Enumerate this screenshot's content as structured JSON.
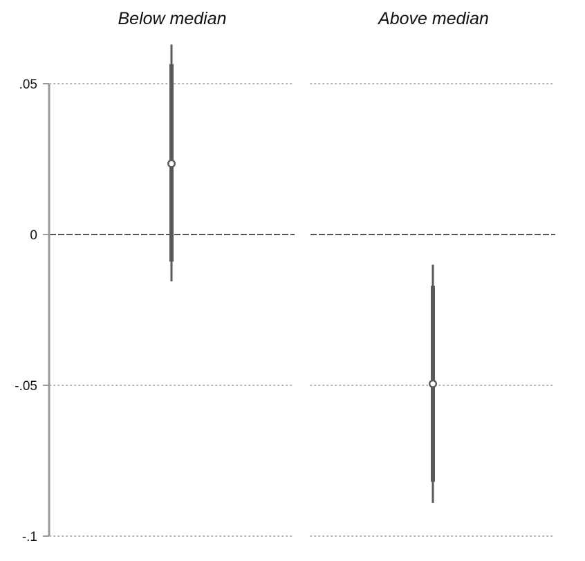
{
  "chart_data": {
    "type": "coefficient_plot",
    "panels": [
      {
        "title": "Below median",
        "estimate": 0.0235,
        "ci_inner": [
          -0.009,
          0.0565
        ],
        "ci_outer": [
          -0.0155,
          0.063
        ]
      },
      {
        "title": "Above median",
        "estimate": -0.0495,
        "ci_inner": [
          -0.082,
          -0.017
        ],
        "ci_outer": [
          -0.089,
          -0.01
        ]
      }
    ],
    "yticks": [
      {
        "value": 0.05,
        "label": ".05"
      },
      {
        "value": 0,
        "label": "0"
      },
      {
        "value": -0.05,
        "label": "-.05"
      },
      {
        "value": -0.1,
        "label": "-.1"
      }
    ],
    "ylim": [
      -0.1,
      0.05
    ],
    "reference_line": 0,
    "grid": "dotted horizontal",
    "colors": {
      "marker": "#595959",
      "axis": "#999999",
      "grid": "#9a9a9a",
      "reference": "#555555"
    }
  }
}
